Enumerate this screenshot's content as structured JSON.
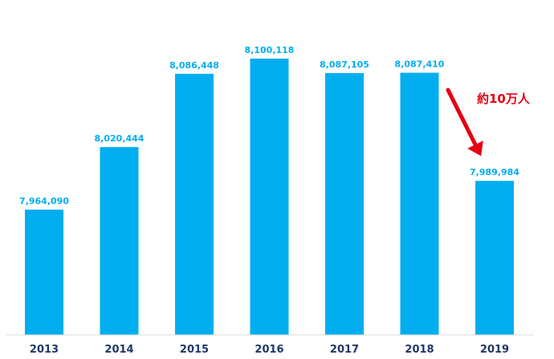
{
  "chart_data": {
    "type": "bar",
    "categories": [
      "2013",
      "2014",
      "2015",
      "2016",
      "2017",
      "2018",
      "2019"
    ],
    "values": [
      7964090,
      8020444,
      8086448,
      8100118,
      8087105,
      8087410,
      7989984
    ],
    "value_labels": [
      "7,964,090",
      "8,020,444",
      "8,086,448",
      "8,100,118",
      "8,087,105",
      "8,087,410",
      "7,989,984"
    ],
    "bar_color": "#00aeef",
    "label_color": "#00aeef",
    "annotation": {
      "text": "約10万人",
      "color": "#e60012",
      "from_category": "2018",
      "to_category": "2019"
    }
  }
}
